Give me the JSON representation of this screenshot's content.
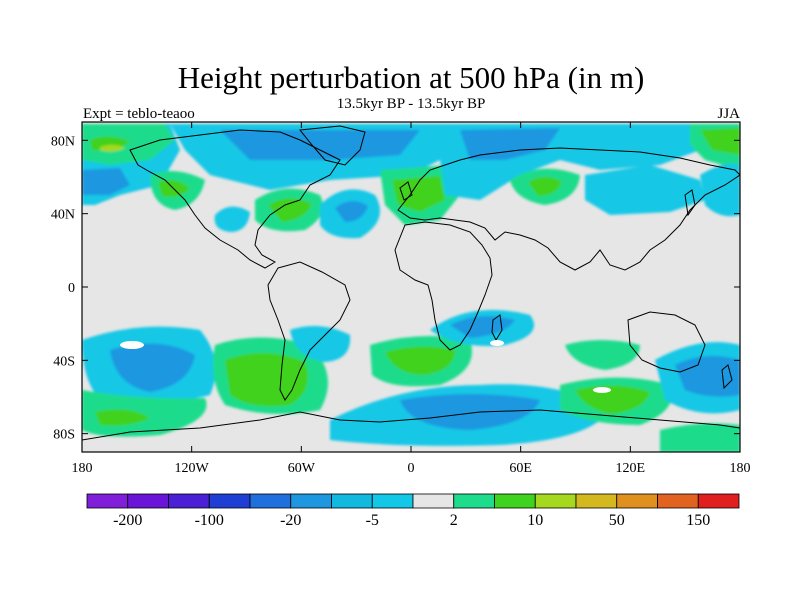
{
  "title": "Height perturbation at 500 hPa (in m)",
  "left_label": "Expt = teblo-teaoo",
  "center_label": "13.5kyr BP - 13.5kyr BP",
  "right_label": "JJA",
  "axes": {
    "lon_range": [
      -180,
      180
    ],
    "lat_range": [
      -90,
      90
    ],
    "x_ticks": [
      {
        "value": -180,
        "label": "180"
      },
      {
        "value": -120,
        "label": "120W"
      },
      {
        "value": -60,
        "label": "60W"
      },
      {
        "value": 0,
        "label": "0"
      },
      {
        "value": 60,
        "label": "60E"
      },
      {
        "value": 120,
        "label": "120E"
      },
      {
        "value": 180,
        "label": "180"
      }
    ],
    "y_ticks": [
      {
        "value": 80,
        "label": "80N"
      },
      {
        "value": 40,
        "label": "40N"
      },
      {
        "value": 0,
        "label": "0"
      },
      {
        "value": -40,
        "label": "40S"
      },
      {
        "value": -80,
        "label": "80S"
      }
    ]
  },
  "colorbar": {
    "colors": [
      "#7f1fd9",
      "#6a14d8",
      "#4b1fd4",
      "#1f3fd4",
      "#1f6fdc",
      "#1f97e0",
      "#12b9de",
      "#13c8e6",
      "#e6e6e6",
      "#1edc8c",
      "#3fd21f",
      "#a6d81f",
      "#d4b81f",
      "#e0901f",
      "#e0641f",
      "#e01f1f"
    ],
    "labels": [
      {
        "after_box": 1,
        "text": "-200"
      },
      {
        "after_box": 3,
        "text": "-100"
      },
      {
        "after_box": 5,
        "text": "-20"
      },
      {
        "after_box": 7,
        "text": "-5"
      },
      {
        "after_box": 9,
        "text": "2"
      },
      {
        "after_box": 11,
        "text": "10"
      },
      {
        "after_box": 13,
        "text": "50"
      },
      {
        "after_box": 15,
        "text": "150"
      }
    ]
  },
  "chart_data": {
    "type": "heatmap",
    "title": "Height perturbation at 500 hPa (in m)",
    "units": "m",
    "season": "JJA",
    "anomalies": [
      {
        "lon": -150,
        "lat": 55,
        "category": "negative",
        "level": -5
      },
      {
        "lon": -160,
        "lat": 75,
        "category": "positive",
        "level": 10
      },
      {
        "lon": -125,
        "lat": 50,
        "category": "positive",
        "level": 2
      },
      {
        "lon": -75,
        "lat": 70,
        "category": "negative",
        "level": -5
      },
      {
        "lon": -90,
        "lat": 40,
        "category": "negative",
        "level": -5
      },
      {
        "lon": -65,
        "lat": 45,
        "category": "positive",
        "level": 2
      },
      {
        "lon": -30,
        "lat": 45,
        "category": "negative",
        "level": -5
      },
      {
        "lon": -10,
        "lat": 50,
        "category": "positive",
        "level": 10
      },
      {
        "lon": 45,
        "lat": 75,
        "category": "negative",
        "level": -5
      },
      {
        "lon": 75,
        "lat": 55,
        "category": "positive",
        "level": 10
      },
      {
        "lon": 120,
        "lat": 55,
        "category": "negative",
        "level": -5
      },
      {
        "lon": 165,
        "lat": 75,
        "category": "positive",
        "level": 2
      },
      {
        "lon": -150,
        "lat": -40,
        "category": "negative",
        "level": -5
      },
      {
        "lon": -80,
        "lat": -55,
        "category": "positive",
        "level": 10
      },
      {
        "lon": -40,
        "lat": -30,
        "category": "negative",
        "level": -5
      },
      {
        "lon": 25,
        "lat": -40,
        "category": "positive",
        "level": 2
      },
      {
        "lon": 50,
        "lat": -20,
        "category": "negative",
        "level": -5
      },
      {
        "lon": 40,
        "lat": -65,
        "category": "negative",
        "level": -5
      },
      {
        "lon": 110,
        "lat": -50,
        "category": "positive",
        "level": 2
      },
      {
        "lon": 165,
        "lat": -45,
        "category": "negative",
        "level": -5
      },
      {
        "lon": -150,
        "lat": -70,
        "category": "positive",
        "level": 2
      }
    ]
  }
}
